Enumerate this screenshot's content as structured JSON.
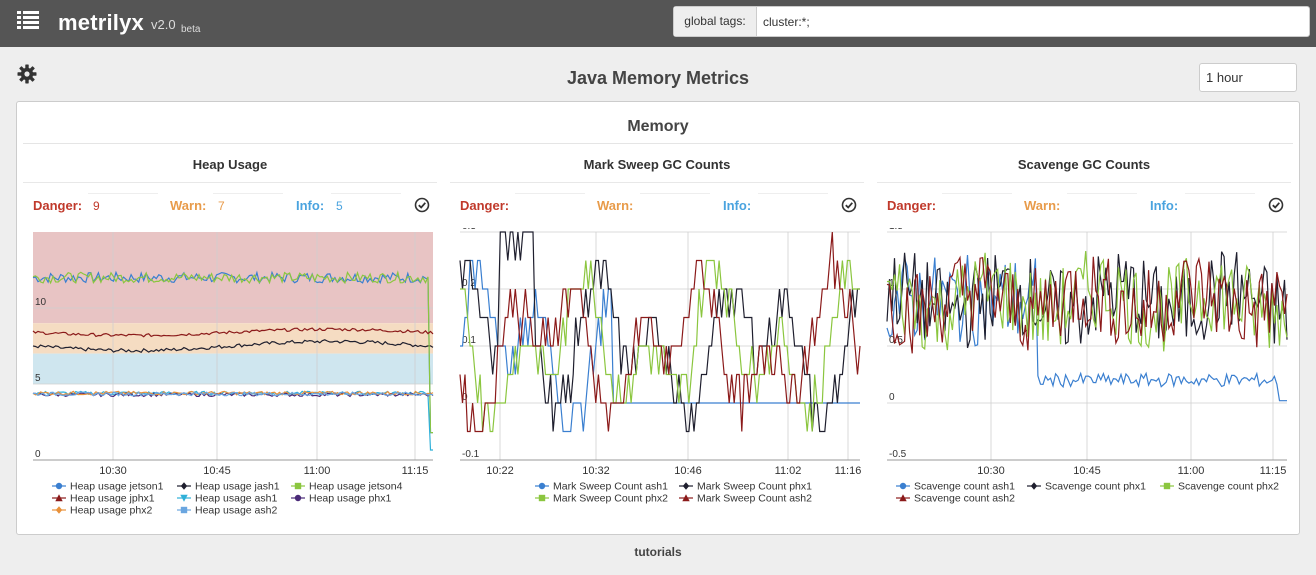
{
  "app": {
    "name": "metrilyx",
    "version": "v2.0",
    "tag": "beta"
  },
  "header": {
    "tags_label": "global tags:",
    "tags_value": "cluster:*;"
  },
  "page": {
    "title": "Java Memory Metrics",
    "time_window": "1 hour"
  },
  "panel": {
    "title": "Memory"
  },
  "footer": {
    "link": "tutorials"
  },
  "graphs": [
    {
      "title": "Heap Usage",
      "thresholds": {
        "danger_label": "Danger:",
        "danger": "9",
        "warn_label": "Warn:",
        "warn": "7",
        "info_label": "Info:",
        "info": "5"
      }
    },
    {
      "title": "Mark Sweep GC Counts",
      "thresholds": {
        "danger_label": "Danger:",
        "danger": "",
        "warn_label": "Warn:",
        "warn": "",
        "info_label": "Info:",
        "info": ""
      }
    },
    {
      "title": "Scavenge GC Counts",
      "thresholds": {
        "danger_label": "Danger:",
        "danger": "",
        "warn_label": "Warn:",
        "warn": "",
        "info_label": "Info:",
        "info": ""
      }
    }
  ],
  "colors": {
    "danger_band": "#e8c4c4",
    "warn_band": "#f5dcc2",
    "info_band": "#cfe6ef",
    "blue": "#3a7fd0",
    "black": "#1f1f2e",
    "green": "#8bc63f",
    "darkred": "#8b1a1a",
    "cyan": "#2fb0d8",
    "purple": "#4a2a78",
    "orange": "#e8913a",
    "lightblue": "#6aa6e0"
  },
  "chart_data": [
    {
      "type": "line",
      "x_ticks": [
        "10:30",
        "10:45",
        "11:00",
        "11:15"
      ],
      "y_ticks": [
        "0",
        "5",
        "10"
      ],
      "ylim": [
        0,
        15
      ],
      "bands": [
        {
          "from": 0,
          "to": 5,
          "label": ""
        }
      ],
      "danger": 9,
      "warn": 7,
      "info": 5,
      "series": [
        {
          "name": "Heap usage jetson1",
          "color": "#3a7fd0",
          "marker": "circle",
          "base": 12,
          "noise": 0.35,
          "end_drop": 1
        },
        {
          "name": "Heap usage jash1",
          "color": "#1f1f2e",
          "marker": "diamond",
          "base": 7.5,
          "noise": 0.12,
          "drift": -0.3
        },
        {
          "name": "Heap usage jetson4",
          "color": "#8bc63f",
          "marker": "square",
          "base": 12,
          "noise": 0.35,
          "end_drop": 1
        },
        {
          "name": "Heap usage jphx1",
          "color": "#8b1a1a",
          "marker": "triangle-up",
          "base": 8.4,
          "noise": 0.1,
          "drift": -0.2
        },
        {
          "name": "Heap usage ash1",
          "color": "#2fb0d8",
          "marker": "triangle-down",
          "base": 4.4,
          "noise": 0.12,
          "end_drop": 1
        },
        {
          "name": "Heap usage phx1",
          "color": "#4a2a78",
          "marker": "circle",
          "base": 4.3,
          "noise": 0.12
        },
        {
          "name": "Heap usage phx2",
          "color": "#e8913a",
          "marker": "diamond",
          "base": 4.4,
          "noise": 0.12
        },
        {
          "name": "Heap usage ash2",
          "color": "#6aa6e0",
          "marker": "square",
          "base": 4.35,
          "noise": 0.12
        }
      ]
    },
    {
      "type": "line",
      "x_ticks": [
        "10:22",
        "10:32",
        "10:46",
        "11:02",
        "11:16"
      ],
      "y_ticks": [
        "-0.1",
        "0",
        "0.1",
        "0.2",
        "0.3"
      ],
      "ylim": [
        -0.1,
        0.3
      ],
      "series": [
        {
          "name": "Mark Sweep Count ash1",
          "color": "#3a7fd0",
          "marker": "circle"
        },
        {
          "name": "Mark Sweep Count phx1",
          "color": "#1f1f2e",
          "marker": "diamond"
        },
        {
          "name": "Mark Sweep Count phx2",
          "color": "#8bc63f",
          "marker": "square"
        },
        {
          "name": "Mark Sweep Count ash2",
          "color": "#8b1a1a",
          "marker": "triangle-up"
        }
      ]
    },
    {
      "type": "line",
      "x_ticks": [
        "10:30",
        "10:45",
        "11:00",
        "11:15"
      ],
      "y_ticks": [
        "-0.5",
        "0",
        "0.5",
        "1",
        "1.5"
      ],
      "ylim": [
        -0.5,
        1.5
      ],
      "series": [
        {
          "name": "Scavenge count ash1",
          "color": "#3a7fd0",
          "marker": "circle"
        },
        {
          "name": "Scavenge count phx1",
          "color": "#1f1f2e",
          "marker": "diamond"
        },
        {
          "name": "Scavenge count phx2",
          "color": "#8bc63f",
          "marker": "square"
        },
        {
          "name": "Scavenge count ash2",
          "color": "#8b1a1a",
          "marker": "triangle-up"
        }
      ]
    }
  ]
}
